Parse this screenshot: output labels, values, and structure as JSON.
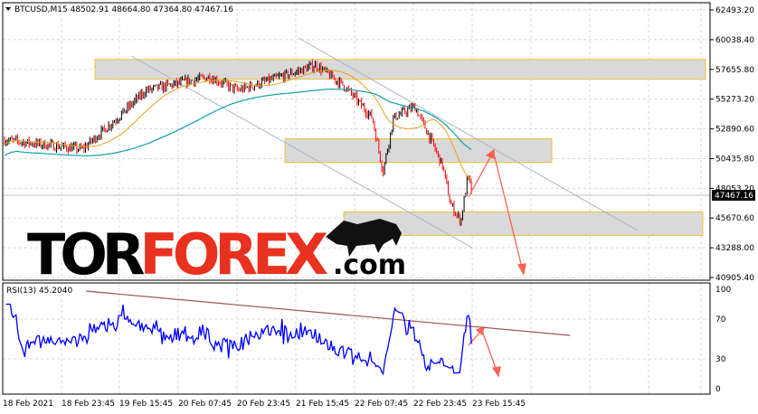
{
  "header": {
    "symbol": "BTCUSD,M15",
    "open": "48502.91",
    "high": "48664.80",
    "low": "47364.80",
    "close": "47467.16"
  },
  "price_axis": [
    "62493.20",
    "60038.40",
    "57655.80",
    "55273.20",
    "52890.60",
    "50435.80",
    "48053.20",
    "45670.60",
    "43288.00",
    "40905.40"
  ],
  "current_price": "47467.16",
  "rsi": {
    "label": "RSI(13) 45.2040",
    "levels": [
      "100",
      "70",
      "30",
      "0"
    ]
  },
  "time_axis": [
    "18 Feb 2021",
    "18 Feb 23:45",
    "19 Feb 15:45",
    "20 Feb 07:45",
    "20 Feb 23:45",
    "21 Feb 15:45",
    "22 Feb 07:45",
    "22 Feb 23:45",
    "23 Feb 15:45"
  ],
  "logo": {
    "part1": "TOR",
    "part2": "FOREX",
    "part3": ".com"
  },
  "colors": {
    "bull": "#ff0000",
    "bear": "#000000",
    "ma_fast": "#e8a020",
    "ma_slow": "#10a0a8",
    "rsi": "#0000ff",
    "zone": "#d9d9d9",
    "zone_border": "#f0c040",
    "arrow": "#ff6050",
    "brand_red": "#e8321f"
  },
  "chart_data": {
    "type": "line",
    "ylim": [
      40905.4,
      62493.2
    ],
    "price_path": [
      [
        0,
        52000
      ],
      [
        0.11,
        51260
      ],
      [
        0.16,
        53800
      ],
      [
        0.2,
        56000
      ],
      [
        0.29,
        57100
      ],
      [
        0.33,
        56000
      ],
      [
        0.41,
        57460
      ],
      [
        0.44,
        58040
      ],
      [
        0.48,
        56370
      ],
      [
        0.52,
        53800
      ],
      [
        0.535,
        49440
      ],
      [
        0.55,
        53800
      ],
      [
        0.58,
        54690
      ],
      [
        0.6,
        52360
      ],
      [
        0.62,
        49800
      ],
      [
        0.63,
        46880
      ],
      [
        0.645,
        45420
      ],
      [
        0.655,
        49070
      ],
      [
        0.662,
        47467
      ]
    ],
    "zones": [
      [
        56900,
        58500
      ],
      [
        50200,
        52100
      ],
      [
        44300,
        46200
      ]
    ],
    "rsi_ylim": [
      0,
      100
    ],
    "rsi_last": 45.204
  }
}
